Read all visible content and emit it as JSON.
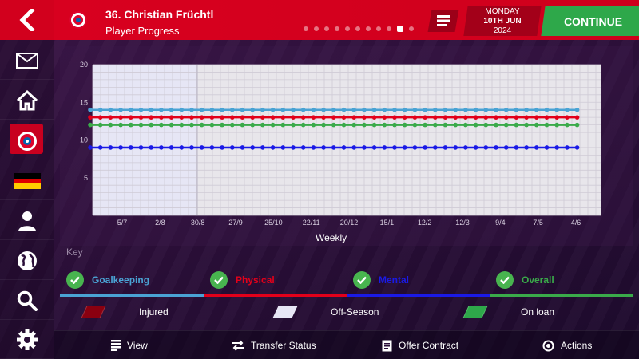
{
  "header": {
    "player_name": "36. Christian Früchtl",
    "subtitle": "Player Progress",
    "date_day": "MONDAY",
    "date_main": "10TH JUN",
    "date_year": "2024",
    "continue_label": "CONTINUE",
    "page_dots": 11,
    "active_dot": 9
  },
  "sidebar": {
    "items": [
      "back-icon",
      "mail-icon",
      "home-icon",
      "club-badge-icon",
      "germany-flag-icon",
      "person-icon",
      "globe-icon",
      "search-icon",
      "settings-icon"
    ]
  },
  "chart": {
    "xlabel": "Weekly"
  },
  "chart_data": {
    "type": "line",
    "title": "",
    "xlabel": "Weekly",
    "ylabel": "",
    "ylim": [
      0,
      20
    ],
    "y_ticks": [
      5,
      10,
      15,
      20
    ],
    "x_tick_labels": [
      "5/7",
      "2/8",
      "30/8",
      "27/9",
      "25/10",
      "22/11",
      "20/12",
      "15/1",
      "12/2",
      "12/3",
      "9/4",
      "7/5",
      "4/6"
    ],
    "num_points": 49,
    "offseason_end_label": "30/8",
    "grid": true,
    "series": [
      {
        "name": "Goalkeeping",
        "color": "#4aa3d4",
        "values_constant": 14
      },
      {
        "name": "Physical",
        "color": "#e2001a",
        "values_constant": 13
      },
      {
        "name": "Mental",
        "color": "#1a1ae6",
        "values_constant": 9
      },
      {
        "name": "Overall",
        "color": "#3aaa4a",
        "values_constant": 12
      }
    ]
  },
  "key": {
    "title": "Key",
    "items": [
      {
        "label": "Goalkeeping",
        "color": "#4aa3d4"
      },
      {
        "label": "Physical",
        "color": "#e2001a"
      },
      {
        "label": "Mental",
        "color": "#1a1ae6"
      },
      {
        "label": "Overall",
        "color": "#3aaa4a"
      }
    ],
    "legend": [
      {
        "label": "Injured",
        "color": "#8a0010"
      },
      {
        "label": "Off-Season",
        "color": "#e6e6f5"
      },
      {
        "label": "On loan",
        "color": "#2ea84a"
      }
    ]
  },
  "bottom_bar": {
    "view": "View",
    "transfer_status": "Transfer Status",
    "offer_contract": "Offer Contract",
    "actions": "Actions"
  }
}
